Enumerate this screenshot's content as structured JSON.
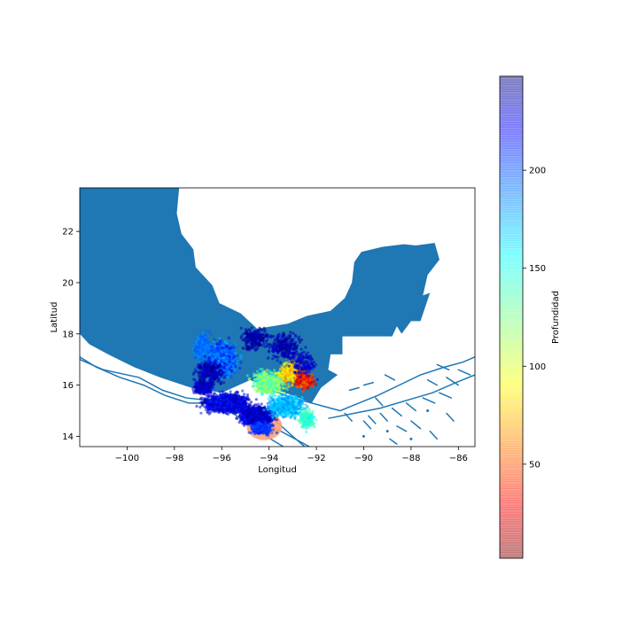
{
  "chart_data": {
    "type": "scatter",
    "title": "",
    "xlabel": "Longitud",
    "ylabel": "Latitud",
    "xlim": [
      -102,
      -85.3
    ],
    "ylim": [
      13.6,
      23.7
    ],
    "xticks": [
      -100,
      -98,
      -96,
      -94,
      -92,
      -90,
      -88,
      -86
    ],
    "xtick_labels": [
      "−100",
      "−98",
      "−96",
      "−94",
      "−92",
      "−90",
      "−88",
      "−86"
    ],
    "yticks": [
      14,
      16,
      18,
      20,
      22
    ],
    "ytick_labels": [
      "14",
      "16",
      "18",
      "20",
      "22"
    ],
    "land_color": "#1f77b4",
    "coast_color": "#1f77b4",
    "colorbar": {
      "label": "Profundidad",
      "colormap": "jet",
      "alpha": 0.5,
      "range": [
        2,
        248
      ],
      "ticks": [
        50,
        100,
        150,
        200
      ],
      "tick_labels": [
        "50",
        "100",
        "150",
        "200"
      ]
    },
    "land_polygon": [
      [
        -102,
        23.7
      ],
      [
        -97.8,
        23.7
      ],
      [
        -97.9,
        22.7
      ],
      [
        -97.7,
        21.9
      ],
      [
        -97.2,
        21.3
      ],
      [
        -97.1,
        20.6
      ],
      [
        -96.4,
        19.9
      ],
      [
        -96.1,
        19.2
      ],
      [
        -95.2,
        18.8
      ],
      [
        -94.5,
        18.2
      ],
      [
        -93.2,
        18.4
      ],
      [
        -92.4,
        18.7
      ],
      [
        -91.4,
        18.9
      ],
      [
        -90.8,
        19.4
      ],
      [
        -90.5,
        20.0
      ],
      [
        -90.4,
        20.8
      ],
      [
        -90.1,
        21.2
      ],
      [
        -89.2,
        21.4
      ],
      [
        -88.3,
        21.5
      ],
      [
        -87.8,
        21.45
      ],
      [
        -87.0,
        21.55
      ],
      [
        -86.8,
        20.9
      ],
      [
        -87.3,
        20.3
      ],
      [
        -87.5,
        19.5
      ],
      [
        -87.2,
        19.6
      ],
      [
        -87.6,
        18.5
      ],
      [
        -88.0,
        18.5
      ],
      [
        -88.4,
        18.0
      ],
      [
        -88.6,
        18.3
      ],
      [
        -88.8,
        17.9
      ],
      [
        -90.9,
        17.9
      ],
      [
        -90.9,
        17.2
      ],
      [
        -91.4,
        17.2
      ],
      [
        -91.5,
        16.6
      ],
      [
        -91.1,
        16.4
      ],
      [
        -91.8,
        15.9
      ],
      [
        -92.2,
        15.3
      ],
      [
        -93.0,
        15.6
      ],
      [
        -94.0,
        15.9
      ],
      [
        -94.8,
        16.2
      ],
      [
        -96.0,
        15.7
      ],
      [
        -97.3,
        15.9
      ],
      [
        -98.6,
        16.3
      ],
      [
        -99.7,
        16.7
      ],
      [
        -100.8,
        17.2
      ],
      [
        -101.6,
        17.6
      ],
      [
        -102,
        18.0
      ]
    ],
    "trenches": [
      [
        [
          -102,
          17.1
        ],
        [
          -101.3,
          16.7
        ],
        [
          -100.3,
          16.3
        ],
        [
          -99.3,
          16.0
        ],
        [
          -98.4,
          15.6
        ],
        [
          -97.4,
          15.3
        ],
        [
          -96.2,
          15.3
        ],
        [
          -95.2,
          14.7
        ],
        [
          -94.3,
          14.1
        ],
        [
          -93.4,
          13.6
        ]
      ],
      [
        [
          -102,
          17.0
        ],
        [
          -101.0,
          16.6
        ],
        [
          -99.5,
          16.3
        ],
        [
          -98.5,
          15.8
        ],
        [
          -97.5,
          15.5
        ],
        [
          -96.5,
          15.4
        ],
        [
          -95.6,
          15.2
        ],
        [
          -94.5,
          14.6
        ],
        [
          -93.5,
          14.2
        ],
        [
          -92.3,
          13.6
        ]
      ],
      [
        [
          -94.2,
          15.9
        ],
        [
          -93.0,
          15.5
        ],
        [
          -91.8,
          15.2
        ],
        [
          -91.0,
          15.0
        ],
        [
          -90.2,
          15.3
        ],
        [
          -89.4,
          15.6
        ],
        [
          -88.5,
          16.0
        ],
        [
          -87.6,
          16.4
        ],
        [
          -86.6,
          16.7
        ],
        [
          -85.8,
          16.9
        ],
        [
          -85.3,
          17.1
        ]
      ],
      [
        [
          -91.5,
          14.7
        ],
        [
          -90.4,
          14.9
        ],
        [
          -89.3,
          15.1
        ],
        [
          -88.2,
          15.4
        ],
        [
          -87.1,
          15.7
        ],
        [
          -86.1,
          16.1
        ],
        [
          -85.3,
          16.4
        ]
      ],
      [
        [
          -94.3,
          14.9
        ],
        [
          -93.6,
          14.5
        ],
        [
          -93.0,
          14.0
        ],
        [
          -92.5,
          13.6
        ]
      ]
    ],
    "fault_segments": [
      [
        [
          -90.6,
          15.8
        ],
        [
          -90.2,
          15.9
        ]
      ],
      [
        [
          -90.0,
          16.0
        ],
        [
          -89.6,
          16.1
        ]
      ],
      [
        [
          -89.8,
          14.8
        ],
        [
          -89.5,
          14.5
        ]
      ],
      [
        [
          -89.3,
          14.9
        ],
        [
          -89.0,
          14.6
        ]
      ],
      [
        [
          -88.8,
          15.1
        ],
        [
          -88.4,
          14.8
        ]
      ],
      [
        [
          -88.2,
          15.3
        ],
        [
          -87.8,
          15.0
        ]
      ],
      [
        [
          -88.6,
          14.4
        ],
        [
          -88.2,
          14.2
        ]
      ],
      [
        [
          -88.0,
          14.6
        ],
        [
          -87.6,
          14.3
        ]
      ],
      [
        [
          -87.5,
          15.5
        ],
        [
          -87.0,
          15.3
        ]
      ],
      [
        [
          -86.8,
          15.7
        ],
        [
          -86.3,
          15.5
        ]
      ],
      [
        [
          -86.5,
          16.3
        ],
        [
          -86.0,
          16.0
        ]
      ],
      [
        [
          -86.0,
          16.6
        ],
        [
          -85.5,
          16.4
        ]
      ],
      [
        [
          -87.3,
          16.2
        ],
        [
          -86.9,
          16.0
        ]
      ],
      [
        [
          -89.5,
          15.5
        ],
        [
          -89.2,
          15.2
        ]
      ],
      [
        [
          -90.0,
          14.6
        ],
        [
          -89.7,
          14.3
        ]
      ],
      [
        [
          -90.8,
          14.9
        ],
        [
          -90.5,
          14.6
        ]
      ],
      [
        [
          -88.9,
          13.9
        ],
        [
          -88.6,
          13.7
        ]
      ],
      [
        [
          -87.2,
          14.2
        ],
        [
          -86.9,
          13.9
        ]
      ],
      [
        [
          -86.5,
          14.9
        ],
        [
          -86.2,
          14.6
        ]
      ],
      [
        [
          -86.9,
          16.8
        ],
        [
          -86.4,
          16.6
        ]
      ],
      [
        [
          -89.1,
          16.4
        ],
        [
          -88.7,
          16.2
        ]
      ]
    ],
    "fault_dots": [
      [
        -90.0,
        14.0
      ],
      [
        -89.0,
        14.2
      ],
      [
        -88.0,
        13.9
      ],
      [
        -87.3,
        15.0
      ]
    ],
    "depth_clusters": [
      {
        "lon": -94.5,
        "lat": 14.8,
        "slon": 0.55,
        "slat": 0.28,
        "n": 1400,
        "depth": [
          2,
          40
        ]
      },
      {
        "lon": -95.8,
        "lat": 15.3,
        "slon": 0.75,
        "slat": 0.3,
        "n": 1600,
        "depth": [
          5,
          45
        ]
      },
      {
        "lon": -96.8,
        "lat": 15.9,
        "slon": 0.3,
        "slat": 0.18,
        "n": 400,
        "depth": [
          5,
          35
        ]
      },
      {
        "lon": -94.3,
        "lat": 14.3,
        "slon": 0.4,
        "slat": 0.2,
        "n": 250,
        "depth": [
          35,
          55
        ]
      },
      {
        "lon": -93.3,
        "lat": 15.2,
        "slon": 0.6,
        "slat": 0.35,
        "n": 700,
        "depth": [
          60,
          95
        ]
      },
      {
        "lon": -92.4,
        "lat": 14.7,
        "slon": 0.25,
        "slat": 0.3,
        "n": 250,
        "depth": [
          90,
          120
        ]
      },
      {
        "lon": -94.0,
        "lat": 16.1,
        "slon": 0.55,
        "slat": 0.35,
        "n": 650,
        "depth": [
          95,
          150
        ]
      },
      {
        "lon": -93.0,
        "lat": 16.5,
        "slon": 0.45,
        "slat": 0.35,
        "n": 450,
        "depth": [
          140,
          190
        ]
      },
      {
        "lon": -92.5,
        "lat": 16.2,
        "slon": 0.35,
        "slat": 0.3,
        "n": 260,
        "depth": [
          185,
          240
        ]
      },
      {
        "lon": -96.0,
        "lat": 17.0,
        "slon": 0.55,
        "slat": 0.55,
        "n": 900,
        "depth": [
          30,
          80
        ]
      },
      {
        "lon": -96.8,
        "lat": 17.5,
        "slon": 0.3,
        "slat": 0.4,
        "n": 350,
        "depth": [
          50,
          70
        ]
      },
      {
        "lon": -94.6,
        "lat": 17.8,
        "slon": 0.5,
        "slat": 0.35,
        "n": 220,
        "depth": [
          2,
          20
        ]
      },
      {
        "lon": -93.3,
        "lat": 17.5,
        "slon": 0.6,
        "slat": 0.45,
        "n": 280,
        "depth": [
          2,
          25
        ]
      },
      {
        "lon": -92.5,
        "lat": 16.8,
        "slon": 0.4,
        "slat": 0.4,
        "n": 140,
        "depth": [
          5,
          30
        ]
      },
      {
        "lon": -96.5,
        "lat": 16.5,
        "slon": 0.5,
        "slat": 0.4,
        "n": 300,
        "depth": [
          2,
          25
        ]
      }
    ],
    "main_event": {
      "lon": -94.2,
      "lat": 14.4,
      "rlon": 0.75,
      "rlat": 0.55,
      "depth": 28
    }
  }
}
